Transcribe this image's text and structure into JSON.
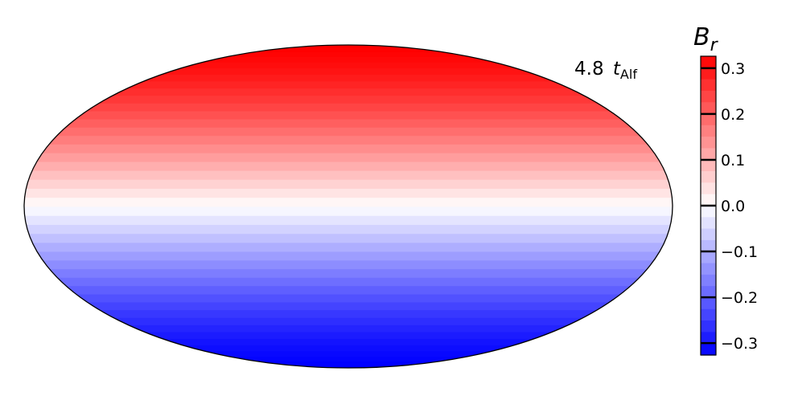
{
  "chart_data": {
    "type": "heatmap",
    "projection": "mollweide",
    "field": "B_r varying with latitude: positive (red) in the northern hemisphere, negative (blue) in the southern",
    "amplitude": 0.326,
    "annotation": {
      "value": "4.8",
      "symbol": "t",
      "subscript": "Alf"
    },
    "colorbar": {
      "label_symbol": "B",
      "label_subscript": "r",
      "vmin": -0.326,
      "vmax": 0.326,
      "ticks": [
        0.3,
        0.2,
        0.1,
        0.0,
        -0.1,
        -0.2,
        -0.3
      ],
      "tick_labels": [
        "0.3",
        "0.2",
        "0.1",
        "0.0",
        "−0.1",
        "−0.2",
        "−0.3"
      ],
      "colormap": "bwr",
      "colors": {
        "low": "#0000ff",
        "mid": "#ffffff",
        "high": "#ff0000"
      }
    }
  }
}
